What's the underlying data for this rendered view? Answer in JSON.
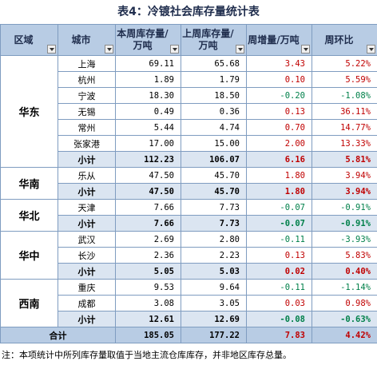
{
  "title": "表4：冷镀社会库存量统计表",
  "headers": {
    "region": "区域",
    "city": "城市",
    "this_week": "本周库存量/万吨",
    "last_week": "上周库存量/万吨",
    "weekly_change": "周增量/万吨",
    "wow": "周环比"
  },
  "regions": [
    {
      "name": "华东",
      "rows": [
        {
          "city": "上海",
          "this": "69.11",
          "last": "65.68",
          "change": "3.43",
          "pct": "5.22%",
          "sign": "pos"
        },
        {
          "city": "杭州",
          "this": "1.89",
          "last": "1.79",
          "change": "0.10",
          "pct": "5.59%",
          "sign": "pos"
        },
        {
          "city": "宁波",
          "this": "18.30",
          "last": "18.50",
          "change": "-0.20",
          "pct": "-1.08%",
          "sign": "neg"
        },
        {
          "city": "无锡",
          "this": "0.49",
          "last": "0.36",
          "change": "0.13",
          "pct": "36.11%",
          "sign": "pos"
        },
        {
          "city": "常州",
          "this": "5.44",
          "last": "4.74",
          "change": "0.70",
          "pct": "14.77%",
          "sign": "pos"
        },
        {
          "city": "张家港",
          "this": "17.00",
          "last": "15.00",
          "change": "2.00",
          "pct": "13.33%",
          "sign": "pos"
        }
      ],
      "subtotal": {
        "label": "小计",
        "this": "112.23",
        "last": "106.07",
        "change": "6.16",
        "pct": "5.81%",
        "sign": "pos"
      }
    },
    {
      "name": "华南",
      "rows": [
        {
          "city": "乐从",
          "this": "47.50",
          "last": "45.70",
          "change": "1.80",
          "pct": "3.94%",
          "sign": "pos"
        }
      ],
      "subtotal": {
        "label": "小计",
        "this": "47.50",
        "last": "45.70",
        "change": "1.80",
        "pct": "3.94%",
        "sign": "pos"
      }
    },
    {
      "name": "华北",
      "rows": [
        {
          "city": "天津",
          "this": "7.66",
          "last": "7.73",
          "change": "-0.07",
          "pct": "-0.91%",
          "sign": "neg"
        }
      ],
      "subtotal": {
        "label": "小计",
        "this": "7.66",
        "last": "7.73",
        "change": "-0.07",
        "pct": "-0.91%",
        "sign": "neg"
      }
    },
    {
      "name": "华中",
      "rows": [
        {
          "city": "武汉",
          "this": "2.69",
          "last": "2.80",
          "change": "-0.11",
          "pct": "-3.93%",
          "sign": "neg"
        },
        {
          "city": "长沙",
          "this": "2.36",
          "last": "2.23",
          "change": "0.13",
          "pct": "5.83%",
          "sign": "pos"
        }
      ],
      "subtotal": {
        "label": "小计",
        "this": "5.05",
        "last": "5.03",
        "change": "0.02",
        "pct": "0.40%",
        "sign": "pos"
      }
    },
    {
      "name": "西南",
      "rows": [
        {
          "city": "重庆",
          "this": "9.53",
          "last": "9.64",
          "change": "-0.11",
          "pct": "-1.14%",
          "sign": "neg"
        },
        {
          "city": "成都",
          "this": "3.08",
          "last": "3.05",
          "change": "0.03",
          "pct": "0.98%",
          "sign": "pos"
        }
      ],
      "subtotal": {
        "label": "小计",
        "this": "12.61",
        "last": "12.69",
        "change": "-0.08",
        "pct": "-0.63%",
        "sign": "neg"
      }
    }
  ],
  "total": {
    "label": "合计",
    "this": "185.05",
    "last": "177.22",
    "change": "7.83",
    "pct": "4.42%",
    "sign": "pos"
  },
  "note": "注：本项统计中所列库存量取值于当地主流仓库库存，并非地区库存总量。",
  "colors": {
    "header_bg": "#b8cce4",
    "subtotal_bg": "#dbe5f1",
    "positive": "#c00000",
    "negative": "#00804a"
  }
}
